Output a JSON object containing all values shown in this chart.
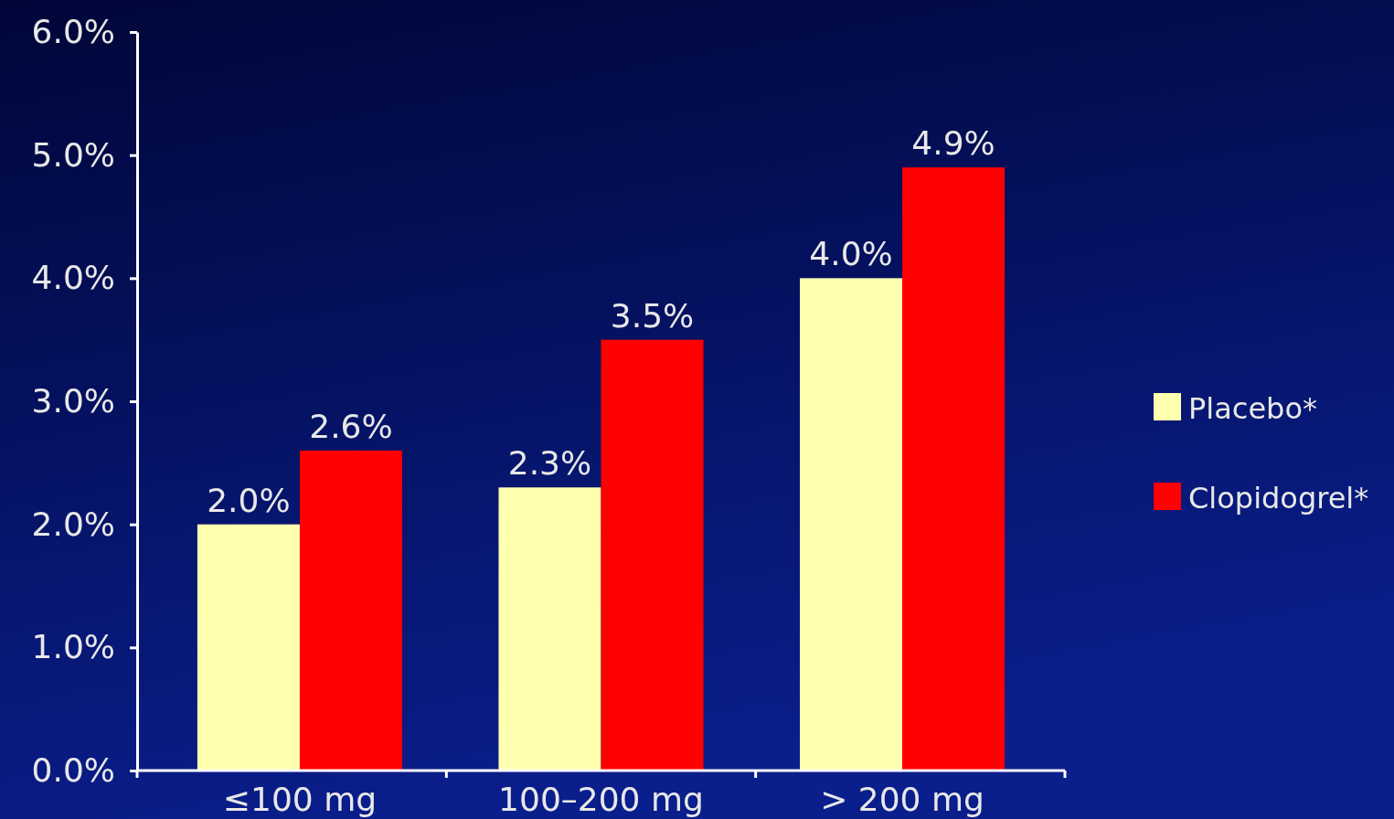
{
  "chart_data": {
    "type": "bar",
    "categories": [
      "≤100 mg",
      "100–200 mg",
      "> 200 mg"
    ],
    "series": [
      {
        "name": "Placebo*",
        "color": "#ffffb0",
        "values": [
          2.0,
          2.3,
          4.0
        ],
        "value_labels": [
          "2.0%",
          "2.3%",
          "4.0%"
        ]
      },
      {
        "name": "Clopidogrel*",
        "color": "#ff0000",
        "values": [
          2.6,
          3.5,
          4.9
        ],
        "value_labels": [
          "2.6%",
          "3.5%",
          "4.9%"
        ]
      }
    ],
    "ylim": [
      0,
      6
    ],
    "yticks": [
      {
        "value": 0,
        "label": "0.0%"
      },
      {
        "value": 1,
        "label": "1.0%"
      },
      {
        "value": 2,
        "label": "2.0%"
      },
      {
        "value": 3,
        "label": "3.0%"
      },
      {
        "value": 4,
        "label": "4.0%"
      },
      {
        "value": 5,
        "label": "5.0%"
      },
      {
        "value": 6,
        "label": "6.0%"
      }
    ],
    "grid": false,
    "legend": "right"
  }
}
